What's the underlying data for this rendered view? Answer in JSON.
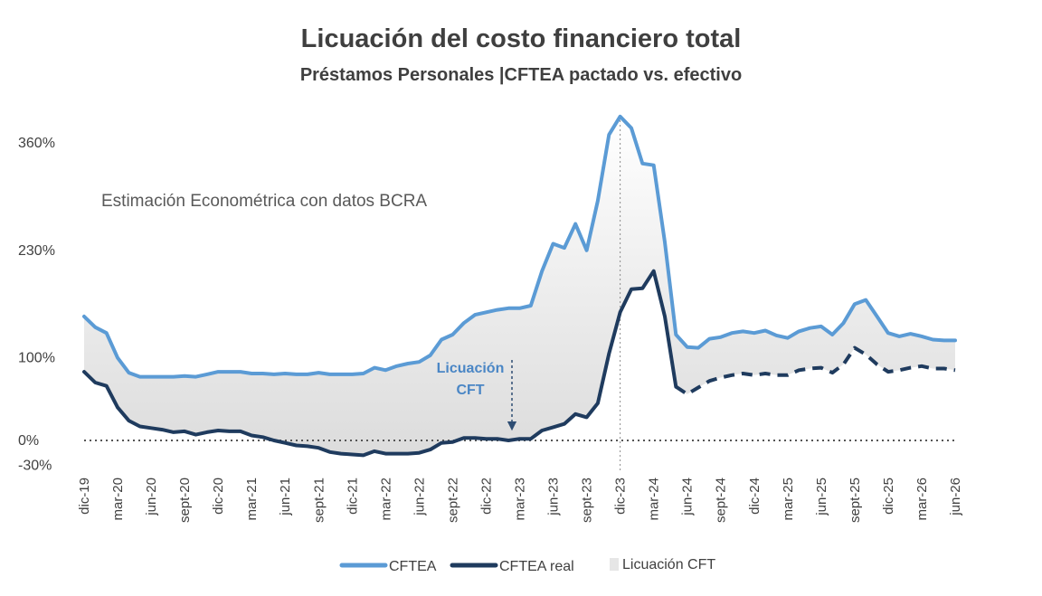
{
  "chart_data": {
    "type": "line",
    "title": "Licuación del costo financiero total",
    "subtitle": "Préstamos Personales |CFTEA pactado vs. efectivo",
    "annotation_text": "Estimación Econométrica con datos BCRA",
    "licuacion_label": [
      "Licuación",
      "CFT"
    ],
    "yticks": [
      {
        "label": "360%",
        "value": 360
      },
      {
        "label": "230%",
        "value": 230
      },
      {
        "label": "100%",
        "value": 100
      },
      {
        "label": "0%",
        "value": 0
      },
      {
        "label": "-30%",
        "value": -30
      }
    ],
    "ylim": [
      -30,
      400
    ],
    "x_start": "dic-19",
    "x_end": "jun-26",
    "xticks": [
      "dic-19",
      "mar-20",
      "jun-20",
      "sept-20",
      "dic-20",
      "mar-21",
      "jun-21",
      "sept-21",
      "dic-21",
      "mar-22",
      "jun-22",
      "sept-22",
      "dic-22",
      "mar-23",
      "jun-23",
      "sept-23",
      "dic-23",
      "mar-24",
      "jun-24",
      "sept-24",
      "dic-24",
      "mar-25",
      "jun-25",
      "sept-25",
      "dic-25",
      "mar-26",
      "jun-26"
    ],
    "vertical_marker": "dic-23",
    "series": [
      {
        "name": "CFTEA",
        "color": "#5b9bd5",
        "points": [
          [
            "dic-19",
            150
          ],
          [
            "ene-20",
            137
          ],
          [
            "feb-20",
            130
          ],
          [
            "mar-20",
            100
          ],
          [
            "abr-20",
            82
          ],
          [
            "may-20",
            77
          ],
          [
            "jun-20",
            77
          ],
          [
            "jul-20",
            77
          ],
          [
            "ago-20",
            77
          ],
          [
            "sept-20",
            78
          ],
          [
            "oct-20",
            77
          ],
          [
            "nov-20",
            80
          ],
          [
            "dic-20",
            83
          ],
          [
            "ene-21",
            83
          ],
          [
            "feb-21",
            83
          ],
          [
            "mar-21",
            81
          ],
          [
            "abr-21",
            81
          ],
          [
            "may-21",
            80
          ],
          [
            "jun-21",
            81
          ],
          [
            "jul-21",
            80
          ],
          [
            "ago-21",
            80
          ],
          [
            "sept-21",
            82
          ],
          [
            "oct-21",
            80
          ],
          [
            "nov-21",
            80
          ],
          [
            "dic-21",
            80
          ],
          [
            "ene-22",
            81
          ],
          [
            "feb-22",
            88
          ],
          [
            "mar-22",
            85
          ],
          [
            "abr-22",
            90
          ],
          [
            "may-22",
            93
          ],
          [
            "jun-22",
            95
          ],
          [
            "jul-22",
            103
          ],
          [
            "ago-22",
            122
          ],
          [
            "sept-22",
            128
          ],
          [
            "oct-22",
            142
          ],
          [
            "nov-22",
            152
          ],
          [
            "dic-22",
            155
          ],
          [
            "ene-23",
            158
          ],
          [
            "feb-23",
            160
          ],
          [
            "mar-23",
            160
          ],
          [
            "abr-23",
            163
          ],
          [
            "may-23",
            205
          ],
          [
            "jun-23",
            238
          ],
          [
            "jul-23",
            233
          ],
          [
            "ago-23",
            262
          ],
          [
            "sept-23",
            230
          ],
          [
            "oct-23",
            290
          ],
          [
            "nov-23",
            370
          ],
          [
            "dic-23",
            392
          ],
          [
            "ene-24",
            378
          ],
          [
            "feb-24",
            335
          ],
          [
            "mar-24",
            333
          ],
          [
            "abr-24",
            240
          ],
          [
            "may-24",
            128
          ],
          [
            "jun-24",
            113
          ],
          [
            "jul-24",
            112
          ],
          [
            "ago-24",
            123
          ],
          [
            "sept-24",
            125
          ],
          [
            "oct-24",
            130
          ],
          [
            "nov-24",
            132
          ],
          [
            "dic-24",
            130
          ],
          [
            "ene-25",
            133
          ],
          [
            "feb-25",
            127
          ],
          [
            "mar-25",
            124
          ],
          [
            "abr-25",
            132
          ],
          [
            "may-25",
            136
          ],
          [
            "jun-25",
            138
          ],
          [
            "jul-25",
            128
          ],
          [
            "ago-25",
            142
          ],
          [
            "sept-25",
            165
          ],
          [
            "oct-25",
            170
          ],
          [
            "nov-25",
            150
          ],
          [
            "dic-25",
            130
          ],
          [
            "ene-26",
            126
          ],
          [
            "feb-26",
            129
          ],
          [
            "mar-26",
            126
          ],
          [
            "abr-26",
            122
          ],
          [
            "may-26",
            121
          ],
          [
            "jun-26",
            121
          ]
        ]
      },
      {
        "name": "CFTEA real",
        "color": "#1f3b5e",
        "solid_until": "may-24",
        "points": [
          [
            "dic-19",
            83
          ],
          [
            "ene-20",
            70
          ],
          [
            "feb-20",
            66
          ],
          [
            "mar-20",
            40
          ],
          [
            "abr-20",
            24
          ],
          [
            "may-20",
            17
          ],
          [
            "jun-20",
            15
          ],
          [
            "jul-20",
            13
          ],
          [
            "ago-20",
            10
          ],
          [
            "sept-20",
            11
          ],
          [
            "oct-20",
            7
          ],
          [
            "nov-20",
            10
          ],
          [
            "dic-20",
            12
          ],
          [
            "ene-21",
            11
          ],
          [
            "feb-21",
            11
          ],
          [
            "mar-21",
            6
          ],
          [
            "abr-21",
            4
          ],
          [
            "may-21",
            0
          ],
          [
            "jun-21",
            -3
          ],
          [
            "jul-21",
            -6
          ],
          [
            "ago-21",
            -7
          ],
          [
            "sept-21",
            -9
          ],
          [
            "oct-21",
            -14
          ],
          [
            "nov-21",
            -16
          ],
          [
            "dic-21",
            -17
          ],
          [
            "ene-22",
            -18
          ],
          [
            "feb-22",
            -13
          ],
          [
            "mar-22",
            -16
          ],
          [
            "abr-22",
            -16
          ],
          [
            "may-22",
            -16
          ],
          [
            "jun-22",
            -15
          ],
          [
            "jul-22",
            -11
          ],
          [
            "ago-22",
            -3
          ],
          [
            "sept-22",
            -2
          ],
          [
            "oct-22",
            3
          ],
          [
            "nov-22",
            3
          ],
          [
            "dic-22",
            2
          ],
          [
            "ene-23",
            2
          ],
          [
            "feb-23",
            0
          ],
          [
            "mar-23",
            2
          ],
          [
            "abr-23",
            2
          ],
          [
            "may-23",
            12
          ],
          [
            "jun-23",
            16
          ],
          [
            "jul-23",
            20
          ],
          [
            "ago-23",
            32
          ],
          [
            "sept-23",
            28
          ],
          [
            "oct-23",
            45
          ],
          [
            "nov-23",
            105
          ],
          [
            "dic-23",
            155
          ],
          [
            "ene-24",
            183
          ],
          [
            "feb-24",
            184
          ],
          [
            "mar-24",
            205
          ],
          [
            "abr-24",
            150
          ],
          [
            "may-24",
            65
          ],
          [
            "jun-24",
            56
          ],
          [
            "jul-24",
            64
          ],
          [
            "ago-24",
            72
          ],
          [
            "sept-24",
            76
          ],
          [
            "oct-24",
            79
          ],
          [
            "nov-24",
            81
          ],
          [
            "dic-24",
            79
          ],
          [
            "ene-25",
            81
          ],
          [
            "feb-25",
            79
          ],
          [
            "mar-25",
            79
          ],
          [
            "abr-25",
            85
          ],
          [
            "may-25",
            87
          ],
          [
            "jun-25",
            88
          ],
          [
            "jul-25",
            82
          ],
          [
            "ago-25",
            92
          ],
          [
            "sept-25",
            112
          ],
          [
            "oct-25",
            104
          ],
          [
            "nov-25",
            92
          ],
          [
            "dic-25",
            83
          ],
          [
            "ene-26",
            85
          ],
          [
            "feb-26",
            88
          ],
          [
            "mar-26",
            90
          ],
          [
            "abr-26",
            87
          ],
          [
            "may-26",
            87
          ],
          [
            "jun-26",
            85
          ]
        ]
      }
    ],
    "legend": {
      "placement": "bottom",
      "items": [
        {
          "label": "CFTEA",
          "kind": "line",
          "color": "#5b9bd5"
        },
        {
          "label": "CFTEA real",
          "kind": "line",
          "color": "#1f3b5e"
        },
        {
          "label": "Licuación CFT",
          "kind": "area",
          "color": "#e6e6e6"
        }
      ]
    }
  }
}
